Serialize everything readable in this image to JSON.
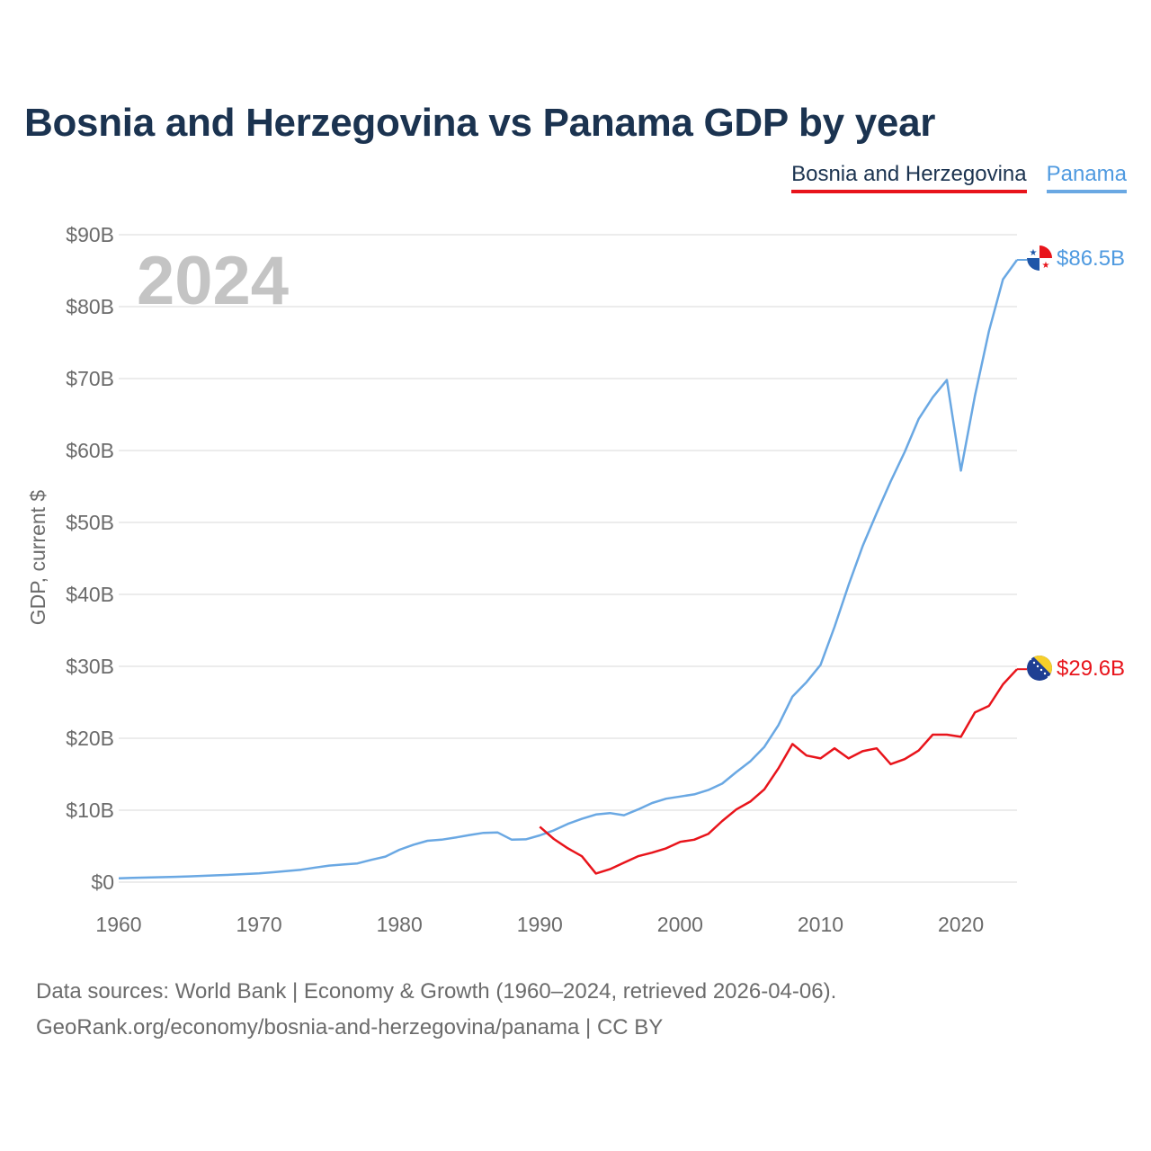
{
  "title": "Bosnia and Herzegovina vs Panama GDP by year",
  "legend": {
    "bih": "Bosnia and Herzegovina",
    "pan": "Panama"
  },
  "sources": {
    "line1": "Data sources: World Bank | Economy & Growth (1960–2024, retrieved 2026-04-06).",
    "line2": "GeoRank.org/economy/bosnia-and-herzegovina/panama | CC BY"
  },
  "colors": {
    "bih": "#e8141b",
    "pan": "#6aa8e3",
    "pan_label": "#4f9ae0",
    "grid": "#e6e6e6"
  },
  "chart_data": {
    "type": "line",
    "year_label": "2024",
    "ylabel": "GDP, current $",
    "xlim": [
      1960,
      2024
    ],
    "ylim": [
      0,
      90
    ],
    "x_ticks": [
      1960,
      1970,
      1980,
      1990,
      2000,
      2010,
      2020
    ],
    "y_ticks": [
      {
        "value": 0,
        "label": "$0"
      },
      {
        "value": 10,
        "label": "$10B"
      },
      {
        "value": 20,
        "label": "$20B"
      },
      {
        "value": 30,
        "label": "$30B"
      },
      {
        "value": 40,
        "label": "$40B"
      },
      {
        "value": 50,
        "label": "$50B"
      },
      {
        "value": 60,
        "label": "$60B"
      },
      {
        "value": 70,
        "label": "$70B"
      },
      {
        "value": 80,
        "label": "$80B"
      },
      {
        "value": 90,
        "label": "$90B"
      }
    ],
    "series": [
      {
        "name": "Panama",
        "key": "pan",
        "end_label": "$86.5B",
        "points": [
          [
            1960,
            0.54
          ],
          [
            1961,
            0.59
          ],
          [
            1962,
            0.64
          ],
          [
            1963,
            0.69
          ],
          [
            1964,
            0.74
          ],
          [
            1965,
            0.8
          ],
          [
            1966,
            0.87
          ],
          [
            1967,
            0.95
          ],
          [
            1968,
            1.03
          ],
          [
            1969,
            1.12
          ],
          [
            1970,
            1.22
          ],
          [
            1971,
            1.37
          ],
          [
            1972,
            1.55
          ],
          [
            1973,
            1.73
          ],
          [
            1974,
            2.02
          ],
          [
            1975,
            2.3
          ],
          [
            1976,
            2.45
          ],
          [
            1977,
            2.6
          ],
          [
            1978,
            3.1
          ],
          [
            1979,
            3.55
          ],
          [
            1980,
            4.5
          ],
          [
            1981,
            5.2
          ],
          [
            1982,
            5.75
          ],
          [
            1983,
            5.9
          ],
          [
            1984,
            6.2
          ],
          [
            1985,
            6.55
          ],
          [
            1986,
            6.85
          ],
          [
            1987,
            6.9
          ],
          [
            1988,
            5.9
          ],
          [
            1989,
            5.95
          ],
          [
            1990,
            6.5
          ],
          [
            1991,
            7.2
          ],
          [
            1992,
            8.1
          ],
          [
            1993,
            8.8
          ],
          [
            1994,
            9.4
          ],
          [
            1995,
            9.6
          ],
          [
            1996,
            9.3
          ],
          [
            1997,
            10.1
          ],
          [
            1998,
            11.0
          ],
          [
            1999,
            11.6
          ],
          [
            2000,
            11.9
          ],
          [
            2001,
            12.2
          ],
          [
            2002,
            12.8
          ],
          [
            2003,
            13.7
          ],
          [
            2004,
            15.3
          ],
          [
            2005,
            16.8
          ],
          [
            2006,
            18.8
          ],
          [
            2007,
            21.8
          ],
          [
            2008,
            25.8
          ],
          [
            2009,
            27.8
          ],
          [
            2010,
            30.2
          ],
          [
            2011,
            35.5
          ],
          [
            2012,
            41.3
          ],
          [
            2013,
            46.7
          ],
          [
            2014,
            51.3
          ],
          [
            2015,
            55.7
          ],
          [
            2016,
            59.8
          ],
          [
            2017,
            64.4
          ],
          [
            2018,
            67.4
          ],
          [
            2019,
            69.8
          ],
          [
            2020,
            57.2
          ],
          [
            2021,
            67.6
          ],
          [
            2022,
            76.6
          ],
          [
            2023,
            83.8
          ],
          [
            2024,
            86.5
          ]
        ]
      },
      {
        "name": "Bosnia and Herzegovina",
        "key": "bih",
        "end_label": "$29.6B",
        "points": [
          [
            1990,
            7.7
          ],
          [
            1991,
            6.0
          ],
          [
            1992,
            4.7
          ],
          [
            1993,
            3.6
          ],
          [
            1994,
            1.2
          ],
          [
            1995,
            1.8
          ],
          [
            1996,
            2.7
          ],
          [
            1997,
            3.6
          ],
          [
            1998,
            4.1
          ],
          [
            1999,
            4.7
          ],
          [
            2000,
            5.6
          ],
          [
            2001,
            5.9
          ],
          [
            2002,
            6.7
          ],
          [
            2003,
            8.5
          ],
          [
            2004,
            10.1
          ],
          [
            2005,
            11.2
          ],
          [
            2006,
            12.9
          ],
          [
            2007,
            15.8
          ],
          [
            2008,
            19.2
          ],
          [
            2009,
            17.6
          ],
          [
            2010,
            17.2
          ],
          [
            2011,
            18.6
          ],
          [
            2012,
            17.2
          ],
          [
            2013,
            18.2
          ],
          [
            2014,
            18.6
          ],
          [
            2015,
            16.4
          ],
          [
            2016,
            17.1
          ],
          [
            2017,
            18.3
          ],
          [
            2018,
            20.5
          ],
          [
            2019,
            20.5
          ],
          [
            2020,
            20.2
          ],
          [
            2021,
            23.6
          ],
          [
            2022,
            24.5
          ],
          [
            2023,
            27.5
          ],
          [
            2024,
            29.6
          ]
        ]
      }
    ]
  }
}
